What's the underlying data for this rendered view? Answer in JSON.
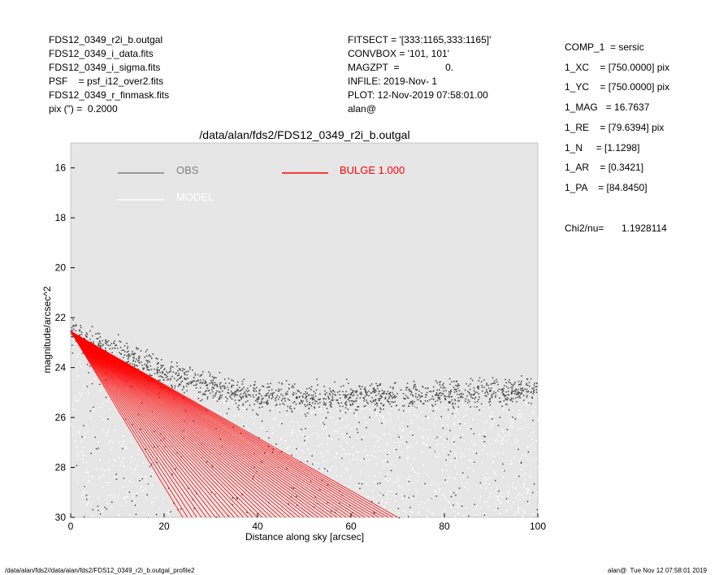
{
  "header_left": [
    "FDS12_0349_r2i_b.outgal",
    "FDS12_0349_i_data.fits",
    "FDS12_0349_i_sigma.fits",
    "PSF    = psf_i12_over2.fits",
    "FDS12_0349_r_finmask.fits",
    "pix (\") =  0.2000"
  ],
  "header_mid": [
    "FITSECT = '[333:1165,333:1165]'",
    "CONVBOX = '101, 101'",
    "MAGZPT  =                 0.",
    "INFILE: 2019-Nov- 1",
    "PLOT: 12-Nov-2019 07:58:01.00",
    "alan@"
  ],
  "params": [
    "COMP_1  = sersic",
    "1_XC    = [750.0000] pix",
    "1_YC    = [750.0000] pix",
    "1_MAG   = 16.7637",
    "1_RE    = [79.6394] pix",
    "1_N     = [1.1298]",
    "1_AR    = [0.3421]",
    "1_PA    = [84.8450]"
  ],
  "chi2_label": "Chi2/nu=",
  "chi2_value": "1.1928114",
  "footer_left": "/data/alan/fds2//data/alan/fds2/FDS12_0349_r2i_b.outgal_profile2",
  "footer_right": "alan@  Tue Nov 12 07:58:01 2019",
  "colors": {
    "background": "#e6e6e6",
    "obs": "#404040",
    "model": "#ffffff",
    "bulge": "#ff0000",
    "legend_obs": "#808080"
  },
  "chart_data": {
    "type": "scatter",
    "title": "/data/alan/fds2/FDS12_0349_r2i_b.outgal",
    "xlabel": "Distance along sky [arcsec]",
    "ylabel": "magnitude/arcsec^2",
    "xlim": [
      0,
      100
    ],
    "ylim": [
      30,
      15
    ],
    "y_inverted": true,
    "grid": false,
    "x_ticks": [
      0,
      20,
      40,
      60,
      80,
      100
    ],
    "y_ticks": [
      16,
      18,
      20,
      22,
      24,
      26,
      28,
      30
    ],
    "legend": [
      {
        "name": "OBS",
        "color": "#808080"
      },
      {
        "name": "MODEL",
        "color": "#ffffff"
      },
      {
        "name": "BULGE  1.000",
        "color": "#ff0000"
      }
    ],
    "series": [
      {
        "name": "OBS",
        "description_points": [
          {
            "x": 0,
            "y": 22.6
          },
          {
            "x": 10,
            "y": 23.3
          },
          {
            "x": 20,
            "y": 24.2
          },
          {
            "x": 30,
            "y": 24.8
          },
          {
            "x": 40,
            "y": 25.1
          },
          {
            "x": 50,
            "y": 25.2
          },
          {
            "x": 60,
            "y": 25.2
          },
          {
            "x": 70,
            "y": 25.1
          },
          {
            "x": 80,
            "y": 25.0
          },
          {
            "x": 90,
            "y": 25.0
          },
          {
            "x": 100,
            "y": 24.9
          }
        ]
      },
      {
        "name": "BULGE  1.000",
        "upper_edge": [
          {
            "x": 0,
            "y": 22.55
          },
          {
            "x": 70,
            "y": 30.0
          }
        ],
        "lower_edge": [
          {
            "x": 0,
            "y": 22.55
          },
          {
            "x": 24,
            "y": 30.0
          }
        ]
      }
    ]
  }
}
